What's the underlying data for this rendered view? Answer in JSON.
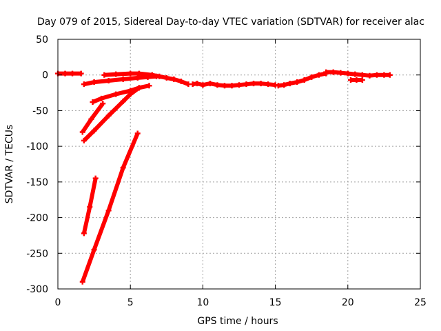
{
  "chart_data": {
    "type": "line",
    "title": "Day 079 of 2015, Sidereal Day-to-day VTEC variation (SDTVAR) for receiver alac",
    "xlabel": "GPS time / hours",
    "ylabel": "SDTVAR / TECUs",
    "xlim": [
      0,
      25
    ],
    "ylim": [
      -300,
      50
    ],
    "x_ticks": [
      0,
      5,
      10,
      15,
      20,
      25
    ],
    "y_ticks": [
      -300,
      -250,
      -200,
      -150,
      -100,
      -50,
      0,
      50
    ],
    "grid": true,
    "colors": {
      "series": "#ff0000"
    },
    "series": [
      {
        "x": [
          0.0,
          0.5,
          1.0,
          1.6
        ],
        "y": [
          2,
          2,
          2,
          2
        ]
      },
      {
        "x": [
          1.8,
          2.5,
          3.5,
          4.5,
          5.5,
          6.2,
          6.8
        ],
        "y": [
          -13,
          -10,
          -8,
          -6,
          -4,
          -3,
          -2
        ]
      },
      {
        "x": [
          3.2,
          4.0,
          5.0,
          5.6,
          6.5,
          7.0,
          7.5,
          8.0,
          8.5,
          9.0
        ],
        "y": [
          0,
          1,
          2,
          2,
          0,
          -2,
          -4,
          -6,
          -9,
          -13
        ]
      },
      {
        "x": [
          9.3,
          9.6,
          10.0,
          10.5,
          11.0,
          11.5,
          12.0,
          12.5,
          13.0,
          13.5,
          14.0,
          14.5,
          15.0
        ],
        "y": [
          -13,
          -12,
          -14,
          -12,
          -14,
          -15,
          -15,
          -14,
          -13,
          -12,
          -12,
          -13,
          -14
        ]
      },
      {
        "x": [
          15.2,
          15.6,
          16.0,
          16.5,
          17.0,
          17.5,
          18.0,
          18.5
        ],
        "y": [
          -15,
          -14,
          -12,
          -10,
          -7,
          -3,
          0,
          2
        ]
      },
      {
        "x": [
          18.5,
          19.0,
          19.5,
          20.0,
          20.5,
          21.0,
          21.5,
          22.0,
          22.5,
          22.9
        ],
        "y": [
          4,
          4,
          3,
          2,
          1,
          0,
          -1,
          0,
          0,
          0
        ]
      },
      {
        "x": [
          20.2,
          20.6,
          21.0
        ],
        "y": [
          -7,
          -7,
          -7
        ]
      },
      {
        "x": [
          2.4,
          3.0,
          4.0,
          5.0,
          5.6,
          6.3
        ],
        "y": [
          -38,
          -33,
          -27,
          -22,
          -18,
          -15
        ]
      },
      {
        "x": [
          1.7,
          2.3,
          3.1
        ],
        "y": [
          -80,
          -62,
          -40
        ]
      },
      {
        "x": [
          1.8,
          2.5,
          3.5,
          4.5,
          5.0,
          5.6
        ],
        "y": [
          -92,
          -78,
          -57,
          -37,
          -27,
          -18
        ]
      },
      {
        "x": [
          1.8,
          2.2,
          2.6
        ],
        "y": [
          -222,
          -185,
          -145
        ]
      },
      {
        "x": [
          1.7,
          2.5,
          3.5,
          4.5,
          5.5
        ],
        "y": [
          -290,
          -245,
          -190,
          -130,
          -82
        ]
      }
    ]
  }
}
